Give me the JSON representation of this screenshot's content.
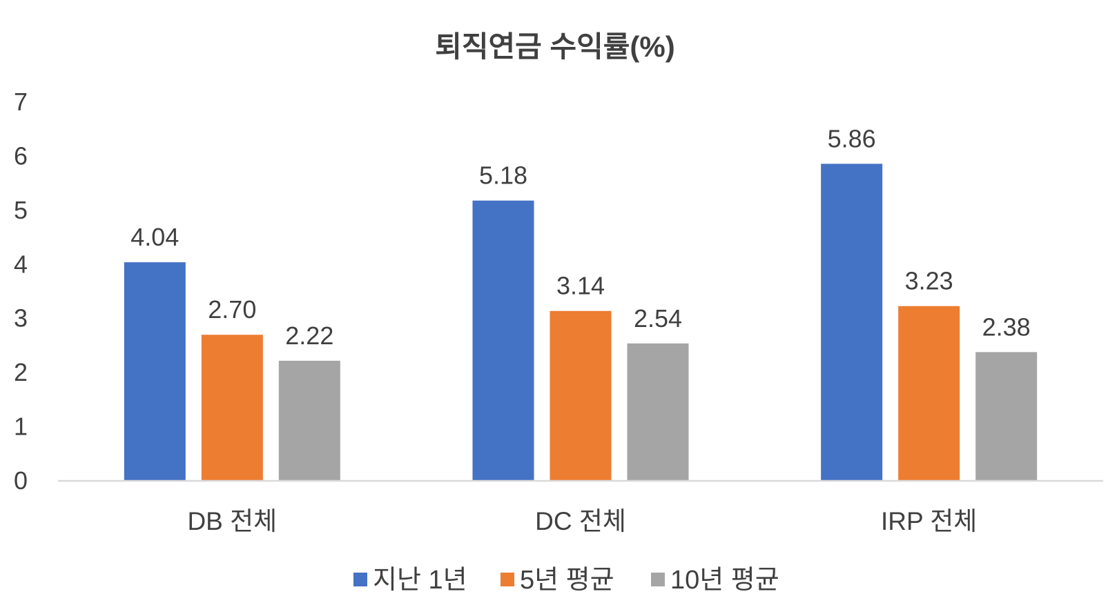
{
  "chart_data": {
    "type": "bar",
    "title": "퇴직연금 수익률(%)",
    "xlabel": "",
    "ylabel": "",
    "ylim": [
      0,
      7
    ],
    "yticks": [
      0,
      1,
      2,
      3,
      4,
      5,
      6,
      7
    ],
    "categories": [
      "DB 전체",
      "DC 전체",
      "IRP 전체"
    ],
    "series": [
      {
        "name": "지난 1년",
        "color": "#4472C4",
        "values": [
          4.04,
          5.18,
          5.86
        ],
        "labels": [
          "4.04",
          "5.18",
          "5.86"
        ]
      },
      {
        "name": "5년 평균",
        "color": "#ED7D31",
        "values": [
          2.7,
          3.14,
          3.23
        ],
        "labels": [
          "2.70",
          "3.14",
          "3.23"
        ]
      },
      {
        "name": "10년 평균",
        "color": "#A5A5A5",
        "values": [
          2.22,
          2.54,
          2.38
        ],
        "labels": [
          "2.22",
          "2.54",
          "2.38"
        ]
      }
    ],
    "grid": false,
    "legend": "bottom",
    "axis_line_color": "#D9D9D9"
  }
}
